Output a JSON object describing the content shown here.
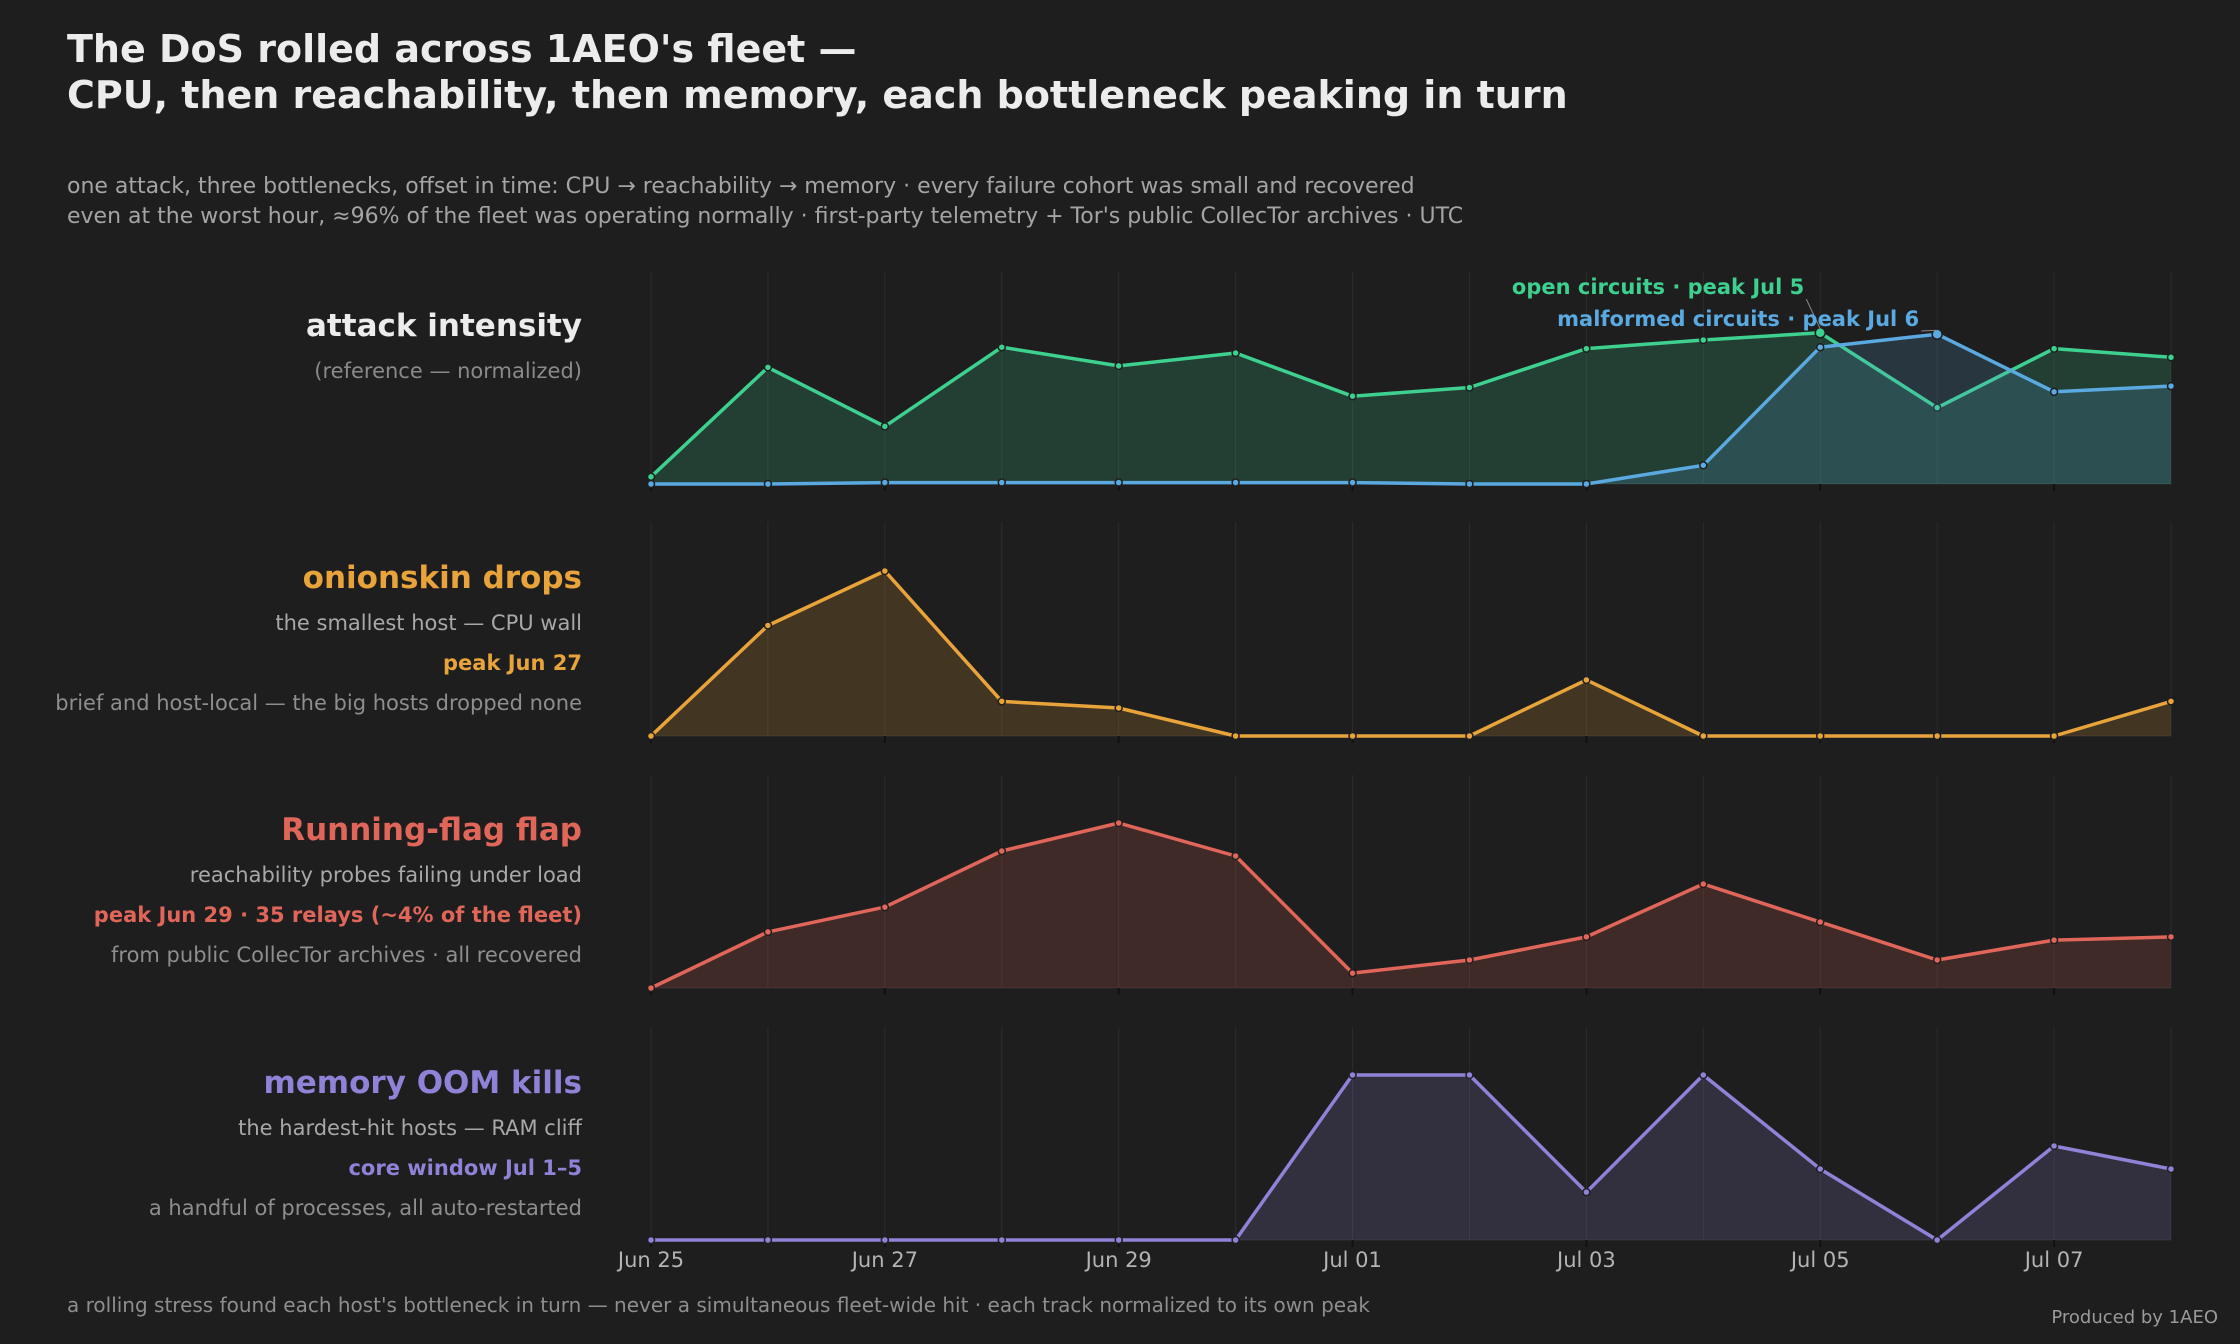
{
  "title_lines": [
    "The DoS rolled across 1AEO's fleet —",
    "CPU, then reachability, then memory, each bottleneck peaking in turn"
  ],
  "subtitle_lines": [
    "one attack, three bottlenecks, offset in time: CPU → reachability → memory · every failure cohort was small and recovered",
    "even at the worst hour, ≈96% of the fleet was operating normally · first-party telemetry + Tor's public CollecTor archives · UTC"
  ],
  "footnote": "a rolling stress found each host's bottleneck in turn — never a simultaneous fleet-wide hit · each track normalized to its own peak",
  "credit": "Produced by 1AEO",
  "colors": {
    "background": "#1e1e1e",
    "grid": "#2c2c2c",
    "axis_text": "#b4b4b4",
    "muted_text": "#a4a4a4",
    "open_circuits": "#3dd08e",
    "malformed_circuits": "#5aa9e0",
    "onionskin": "#e8a33a",
    "running_flag": "#e0665a",
    "memory": "#8f83d8"
  },
  "chart_data": {
    "type": "area",
    "x": [
      "2024-06-25",
      "2024-06-26",
      "2024-06-27",
      "2024-06-28",
      "2024-06-29",
      "2024-06-30",
      "2024-07-01",
      "2024-07-02",
      "2024-07-03",
      "2024-07-04",
      "2024-07-05",
      "2024-07-06",
      "2024-07-07",
      "2024-07-08"
    ],
    "x_tick_labels": [
      "Jun 25",
      "Jun 27",
      "Jun 29",
      "Jul 01",
      "Jul 03",
      "Jul 05",
      "Jul 07"
    ],
    "x_tick_dates": [
      "2024-06-25",
      "2024-06-27",
      "2024-06-29",
      "2024-07-01",
      "2024-07-03",
      "2024-07-05",
      "2024-07-07"
    ],
    "ylim": [
      0,
      1
    ],
    "grid": true,
    "panels": [
      {
        "id": "attack",
        "label": "attack intensity",
        "label_color": "#ececec",
        "lines": [
          "(reference — normalized)"
        ],
        "series": [
          {
            "name": "open circuits",
            "color": "#3dd08e",
            "values": [
              0.05,
              0.81,
              0.4,
              0.95,
              0.82,
              0.91,
              0.61,
              0.67,
              0.94,
              1.0,
              1.05,
              0.53,
              0.94,
              0.88
            ]
          },
          {
            "name": "malformed circuits",
            "color": "#5aa9e0",
            "values": [
              0.0,
              0.0,
              0.01,
              0.01,
              0.01,
              0.01,
              0.01,
              0.0,
              0.0,
              0.13,
              0.95,
              1.04,
              0.64,
              0.68
            ]
          }
        ],
        "annotations": [
          {
            "text": "open circuits · peak Jul 5",
            "color": "#3dd08e",
            "date": "2024-07-05",
            "value": 1.05,
            "series": "open circuits"
          },
          {
            "text": "malformed circuits · peak Jul 6",
            "color": "#5aa9e0",
            "date": "2024-07-06",
            "value": 1.04,
            "series": "malformed circuits"
          }
        ]
      },
      {
        "id": "onionskin",
        "label": "onionskin drops",
        "label_color": "#e8a33a",
        "lines": [
          "the smallest host — CPU wall",
          "peak Jun 27",
          "brief and host-local — the big hosts dropped none"
        ],
        "highlight_line": 1,
        "series": [
          {
            "color": "#e8a33a",
            "values": [
              0.0,
              0.67,
              1.0,
              0.21,
              0.17,
              0.0,
              0.0,
              0.0,
              0.34,
              0.0,
              0.0,
              0.0,
              0.0,
              0.21
            ]
          }
        ]
      },
      {
        "id": "running",
        "label": "Running-flag flap",
        "label_color": "#e0665a",
        "lines": [
          "reachability probes failing under load",
          "peak Jun 29 · 35 relays (~4% of the fleet)",
          "from public CollecTor archives · all recovered"
        ],
        "highlight_line": 1,
        "series": [
          {
            "color": "#e0665a",
            "values": [
              0.0,
              0.34,
              0.49,
              0.83,
              1.0,
              0.8,
              0.09,
              0.17,
              0.31,
              0.63,
              0.4,
              0.17,
              0.29,
              0.31
            ]
          }
        ]
      },
      {
        "id": "memory",
        "label": "memory OOM kills",
        "label_color": "#8f83d8",
        "lines": [
          "the hardest-hit hosts — RAM cliff",
          "core window Jul 1–5",
          "a handful of processes, all auto-restarted"
        ],
        "highlight_line": 1,
        "series": [
          {
            "color": "#8f83d8",
            "values": [
              0.0,
              0.0,
              0.0,
              0.0,
              0.0,
              0.0,
              1.0,
              1.0,
              0.29,
              1.0,
              0.43,
              0.0,
              0.57,
              0.43
            ]
          }
        ]
      }
    ]
  }
}
